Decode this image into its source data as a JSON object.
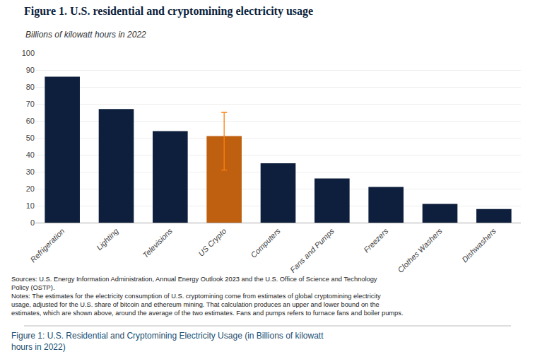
{
  "chart_data": {
    "type": "bar",
    "title": "Figure 1. U.S. residential and cryptomining electricity usage",
    "subtitle": "Billions of kilowatt hours in 2022",
    "categories": [
      "Refrigeration",
      "Lighting",
      "Televisions",
      "US Crypto",
      "Computers",
      "Fans and Pumps",
      "Freezers",
      "Clothes Washers",
      "Dishwashers"
    ],
    "values": [
      86,
      67,
      54,
      51,
      35,
      26,
      21,
      11,
      8
    ],
    "colors": [
      "#0d1f3c",
      "#0d1f3c",
      "#0d1f3c",
      "#bf6010",
      "#0d1f3c",
      "#0d1f3c",
      "#0d1f3c",
      "#0d1f3c",
      "#0d1f3c"
    ],
    "errors": [
      null,
      null,
      null,
      {
        "minus": 20,
        "plus": 14
      },
      null,
      null,
      null,
      null,
      null
    ],
    "ylim": [
      0,
      100
    ],
    "yticks": [
      0,
      10,
      20,
      30,
      40,
      50,
      60,
      70,
      80,
      90,
      100
    ],
    "grid": true,
    "notes": [
      "Sources: U.S. Energy Information Administration, Annual Energy Outlook 2023 and the U.S. Office of Science and Technology",
      "Policy (OSTP).",
      "Notes: The estimates for the electricity consumption of U.S. cryptomining come from estimates of global cryptomining electricity",
      "usage, adjusted for the U.S. share of bitcoin and ethereum mining. That calculation produces an upper and lower bound on the",
      "estimates, which are shown above, around the average of the two estimates. Fans and pumps refers to furnace fans and boiler pumps."
    ],
    "caption": "Figure 1: U.S. Residential and Cryptomining Electricity Usage (in Billions of kilowatt\nhours in 2022)",
    "title_color": "#0d1f3c",
    "subtitle_color": "#333333",
    "notes_color": "#222222",
    "caption_color": "#1a4f72",
    "background_color": "#ffffff"
  }
}
